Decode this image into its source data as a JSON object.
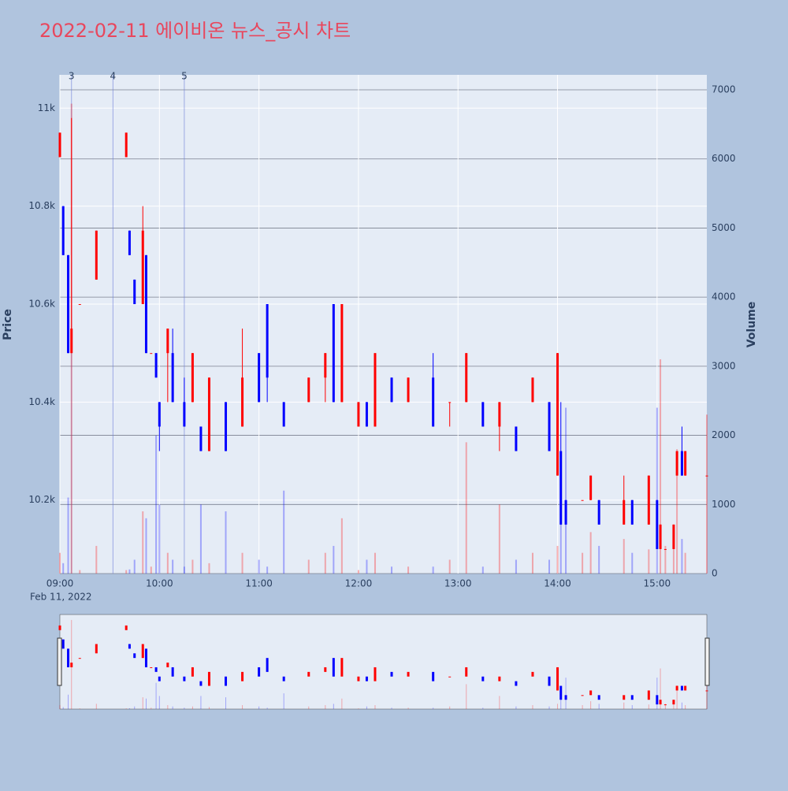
{
  "chart_data": {
    "type": "candlestick",
    "title": "2022-02-11 에이비온 뉴스_공시 차트",
    "y_label": "Price",
    "y2_label": "Volume",
    "x_sublabel": "Feb 11, 2022",
    "increasing_color": "#ff0000",
    "decreasing_color": "#0000ff",
    "x": [
      "09:00",
      "09:02",
      "09:05",
      "09:07",
      "09:12",
      "09:22",
      "09:40",
      "09:42",
      "09:45",
      "09:50",
      "09:52",
      "09:55",
      "09:58",
      "10:00",
      "10:05",
      "10:08",
      "10:15",
      "10:20",
      "10:25",
      "10:30",
      "10:40",
      "10:50",
      "11:00",
      "11:05",
      "11:15",
      "11:30",
      "11:40",
      "11:45",
      "11:50",
      "12:00",
      "12:05",
      "12:10",
      "12:20",
      "12:30",
      "12:45",
      "12:55",
      "13:05",
      "13:15",
      "13:25",
      "13:35",
      "13:45",
      "13:55",
      "14:00",
      "14:02",
      "14:05",
      "14:15",
      "14:20",
      "14:25",
      "14:40",
      "14:45",
      "14:55",
      "15:00",
      "15:02",
      "15:05",
      "15:10",
      "15:12",
      "15:15",
      "15:17",
      "15:30"
    ],
    "open": [
      10900,
      10800,
      10700,
      10500,
      10600,
      10650,
      10900,
      10750,
      10650,
      10600,
      10700,
      10500,
      10500,
      10400,
      10500,
      10500,
      10400,
      10400,
      10350,
      10300,
      10400,
      10350,
      10500,
      10600,
      10400,
      10400,
      10450,
      10600,
      10400,
      10350,
      10400,
      10350,
      10450,
      10400,
      10450,
      10400,
      10400,
      10400,
      10350,
      10350,
      10400,
      10400,
      10250,
      10300,
      10200,
      10200,
      10200,
      10200,
      10150,
      10200,
      10150,
      10200,
      10100,
      10100,
      10100,
      10250,
      10300,
      10250,
      10250
    ],
    "high": [
      10950,
      10800,
      10700,
      10980,
      10600,
      10750,
      10950,
      10750,
      10650,
      10800,
      10700,
      10500,
      10500,
      10400,
      10550,
      10550,
      10450,
      10500,
      10350,
      10450,
      10400,
      10550,
      10500,
      10600,
      10400,
      10450,
      10500,
      10600,
      10600,
      10400,
      10400,
      10500,
      10450,
      10450,
      10500,
      10400,
      10500,
      10400,
      10400,
      10350,
      10450,
      10400,
      10500,
      10400,
      10200,
      10200,
      10250,
      10200,
      10250,
      10200,
      10250,
      10200,
      10150,
      10100,
      10150,
      10300,
      10350,
      10300,
      10250
    ],
    "low": [
      10900,
      10700,
      10500,
      10500,
      10600,
      10650,
      10900,
      10700,
      10600,
      10600,
      10500,
      10500,
      10450,
      10300,
      10400,
      10400,
      10350,
      10400,
      10300,
      10300,
      10300,
      10350,
      10400,
      10400,
      10350,
      10400,
      10400,
      10400,
      10400,
      10350,
      10350,
      10350,
      10400,
      10400,
      10350,
      10350,
      10400,
      10350,
      10300,
      10300,
      10400,
      10300,
      10250,
      10150,
      10150,
      10200,
      10200,
      10150,
      10150,
      10150,
      10150,
      10100,
      10100,
      10100,
      10100,
      10250,
      10250,
      10250,
      10250
    ],
    "close": [
      10950,
      10700,
      10500,
      10550,
      10600,
      10750,
      10950,
      10700,
      10600,
      10750,
      10500,
      10500,
      10450,
      10350,
      10550,
      10400,
      10350,
      10500,
      10300,
      10450,
      10300,
      10450,
      10400,
      10450,
      10350,
      10450,
      10500,
      10400,
      10600,
      10400,
      10350,
      10500,
      10400,
      10450,
      10350,
      10400,
      10500,
      10350,
      10400,
      10300,
      10450,
      10300,
      10500,
      10150,
      10150,
      10200,
      10250,
      10150,
      10200,
      10150,
      10250,
      10100,
      10150,
      10100,
      10150,
      10300,
      10250,
      10300,
      10250
    ],
    "volume": [
      300,
      150,
      1100,
      6800,
      50,
      400,
      50,
      60,
      200,
      900,
      800,
      100,
      2000,
      1000,
      300,
      200,
      100,
      200,
      1000,
      150,
      900,
      300,
      200,
      100,
      1200,
      200,
      300,
      400,
      800,
      50,
      200,
      300,
      100,
      100,
      100,
      200,
      1900,
      100,
      1000,
      200,
      300,
      200,
      400,
      800,
      2400,
      300,
      600,
      400,
      500,
      300,
      350,
      2400,
      3100,
      400,
      400,
      1800,
      500,
      300,
      2300
    ],
    "annotations": [
      {
        "x": "09:07",
        "text": "3"
      },
      {
        "x": "09:32",
        "text": "4"
      },
      {
        "x": "10:15",
        "text": "5"
      }
    ],
    "xlim": [
      "09:00",
      "15:30"
    ],
    "xticks": [
      "09:00",
      "10:00",
      "11:00",
      "12:00",
      "13:00",
      "14:00",
      "15:00"
    ],
    "ylim": [
      10050,
      11068
    ],
    "yticks": [
      {
        "value": 10200,
        "label": "10.2k"
      },
      {
        "value": 10400,
        "label": "10.4k"
      },
      {
        "value": 10600,
        "label": "10.6k"
      },
      {
        "value": 10800,
        "label": "10.8k"
      },
      {
        "value": 11000,
        "label": "11k"
      }
    ],
    "y2lim": [
      0,
      7217
    ],
    "y2ticks": [
      0,
      1000,
      2000,
      3000,
      4000,
      5000,
      6000,
      7000
    ],
    "grid": true,
    "rangeslider": true
  }
}
